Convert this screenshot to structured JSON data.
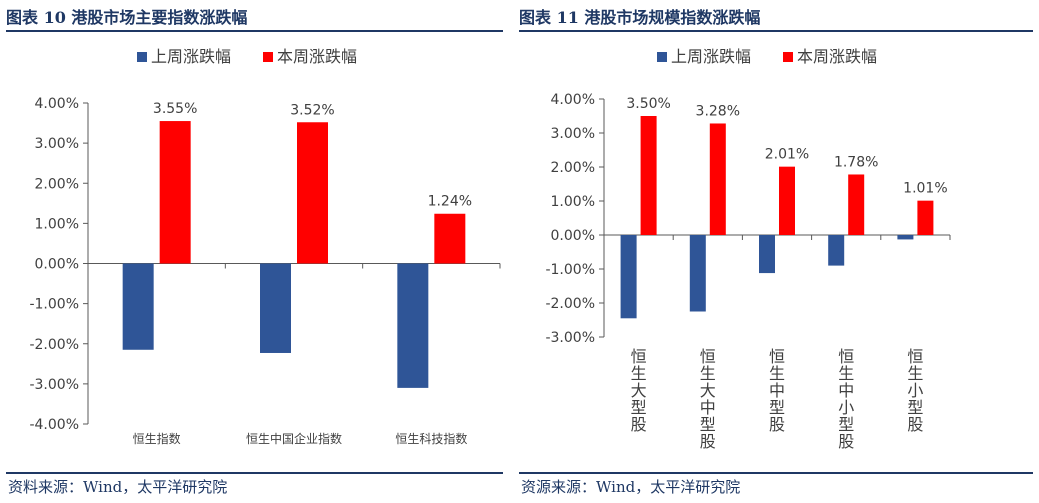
{
  "figures": [
    {
      "id": "fig10",
      "title": "图表 10  港股市场主要指数涨跌幅",
      "source": "资料来源：Wind，太平洋研究院"
    },
    {
      "id": "fig11",
      "title": "图表 11  港股市场规模指数涨跌幅",
      "source": "资源来源：Wind，太平洋研究院"
    }
  ],
  "colors": {
    "last_week": "#2f5597",
    "this_week": "#ff0000",
    "title": "#1f3864",
    "axis": "#595959",
    "text": "#404040"
  },
  "chart_data": [
    {
      "type": "bar",
      "title": "",
      "categories": [
        "恒生指数",
        "恒生中国企业指数",
        "恒生科技指数"
      ],
      "series": [
        {
          "name": "上周涨跌幅",
          "values": [
            -2.15,
            -2.23,
            -3.1
          ]
        },
        {
          "name": "本周涨跌幅",
          "values": [
            3.55,
            3.52,
            1.24
          ]
        }
      ],
      "data_labels": [
        "3.55%",
        "3.52%",
        "1.24%"
      ],
      "yticks": [
        "4.00%",
        "3.00%",
        "2.00%",
        "1.00%",
        "0.00%",
        "-1.00%",
        "-2.00%",
        "-3.00%",
        "-4.00%"
      ],
      "ylim": [
        -4,
        4
      ],
      "legend": "top",
      "grid": false,
      "category_label_orientation": "horizontal"
    },
    {
      "type": "bar",
      "title": "",
      "categories": [
        "恒生大型股",
        "恒生大中型股",
        "恒生中型股",
        "恒生中小型股",
        "恒生小型股"
      ],
      "series": [
        {
          "name": "上周涨跌幅",
          "values": [
            -2.45,
            -2.25,
            -1.12,
            -0.9,
            -0.13
          ]
        },
        {
          "name": "本周涨跌幅",
          "values": [
            3.5,
            3.28,
            2.01,
            1.78,
            1.01
          ]
        }
      ],
      "data_labels": [
        "3.50%",
        "3.28%",
        "2.01%",
        "1.78%",
        "1.01%"
      ],
      "yticks": [
        "4.00%",
        "3.00%",
        "2.00%",
        "1.00%",
        "0.00%",
        "-1.00%",
        "-2.00%",
        "-3.00%"
      ],
      "ylim": [
        -3,
        4
      ],
      "legend": "top",
      "grid": false,
      "category_label_orientation": "vertical"
    }
  ]
}
